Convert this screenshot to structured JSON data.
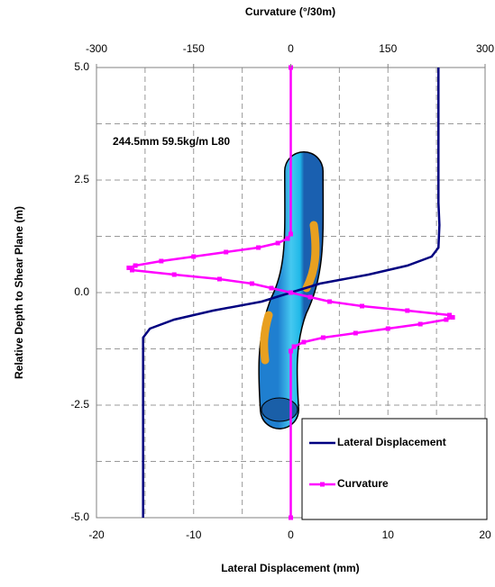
{
  "chart_data": {
    "type": "line",
    "title": "Curvature (°/30m)",
    "x_label": "Lateral Displacement (mm)",
    "y_label": "Relative Depth to Shear Plane (m)",
    "annotation": "244.5mm 59.5kg/m L80",
    "xlim": [
      -20,
      20
    ],
    "xticks": [
      -20,
      -10,
      0,
      10,
      20
    ],
    "x2lim": [
      -300,
      300
    ],
    "x2ticks": [
      -300,
      -150,
      0,
      150,
      300
    ],
    "ylim": [
      -5,
      5
    ],
    "yticks": [
      {
        "value": 5,
        "label": "5.0"
      },
      {
        "value": 2.5,
        "label": "2.5"
      },
      {
        "value": 0,
        "label": "0.0"
      },
      {
        "value": -2.5,
        "label": "-2.5"
      },
      {
        "value": -5,
        "label": "-5.0"
      }
    ],
    "grid": true,
    "legend": "lower right",
    "series": [
      {
        "name": "Lateral Displacement",
        "color": "#000080",
        "markers": false,
        "x": [
          15.2,
          15.2,
          15.3,
          15.2,
          14.5,
          12,
          8,
          3,
          0,
          -3,
          -8,
          -12,
          -14.5,
          -15.2,
          -15.2,
          -15.2
        ],
        "y": [
          5,
          2.0,
          1.5,
          1.0,
          0.8,
          0.6,
          0.4,
          0.2,
          0,
          -0.2,
          -0.4,
          -0.6,
          -0.8,
          -1.0,
          -1.5,
          -5
        ]
      },
      {
        "name": "Curvature",
        "color": "#ff00ff",
        "markers": true,
        "axis": "x2",
        "x": [
          0,
          0,
          -5,
          -20,
          -50,
          -100,
          -150,
          -200,
          -240,
          -250,
          -245,
          -180,
          -110,
          -60,
          -30,
          0,
          30,
          60,
          110,
          180,
          245,
          250,
          240,
          200,
          150,
          100,
          50,
          20,
          5,
          0,
          0
        ],
        "y": [
          5,
          1.3,
          1.2,
          1.1,
          1.0,
          0.9,
          0.8,
          0.7,
          0.6,
          0.55,
          0.5,
          0.4,
          0.3,
          0.2,
          0.1,
          0,
          -0.1,
          -0.2,
          -0.3,
          -0.4,
          -0.5,
          -0.55,
          -0.6,
          -0.7,
          -0.8,
          -0.9,
          -1.0,
          -1.1,
          -1.2,
          -1.3,
          -5
        ]
      }
    ]
  }
}
